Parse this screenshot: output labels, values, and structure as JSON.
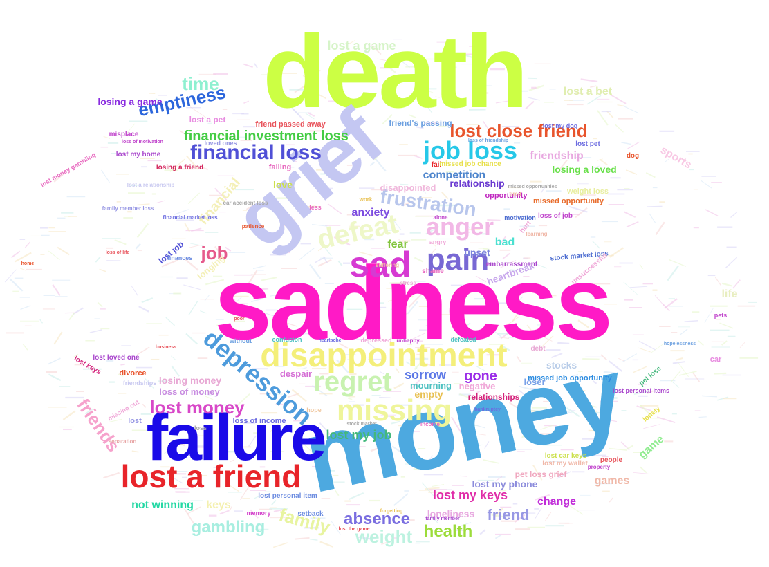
{
  "words": [
    {
      "text": "sadness",
      "color": "#ff1ac6"
    },
    {
      "text": "death",
      "color": "#ccff44"
    },
    {
      "text": "money",
      "color": "#4da9e0"
    },
    {
      "text": "grief",
      "color": "#c4c7f2"
    },
    {
      "text": "failure",
      "color": "#1a0ae8"
    },
    {
      "text": "lost a friend",
      "color": "#e8242a"
    },
    {
      "text": "disappointment",
      "color": "#f4ef7a"
    },
    {
      "text": "missing",
      "color": "#eff59a"
    },
    {
      "text": "regret",
      "color": "#c8f2b0"
    },
    {
      "text": "depression",
      "color": "#4d9bdc"
    },
    {
      "text": "sad",
      "color": "#d63ad2"
    },
    {
      "text": "pain",
      "color": "#7868d4"
    },
    {
      "text": "defeat",
      "color": "#eef7c8"
    },
    {
      "text": "anger",
      "color": "#f2b8e6"
    },
    {
      "text": "job loss",
      "color": "#26c8e8"
    },
    {
      "text": "financial loss",
      "color": "#5050d6"
    },
    {
      "text": "lost close friend",
      "color": "#e8542c"
    },
    {
      "text": "frustration",
      "color": "#b8c6ec"
    },
    {
      "text": "emptiness",
      "color": "#2c66dc"
    },
    {
      "text": "time",
      "color": "#8ef0d0"
    },
    {
      "text": "financial investment loss",
      "color": "#44cc44"
    },
    {
      "text": "lost money",
      "color": "#d848c8"
    },
    {
      "text": "friends",
      "color": "#f6a2cc"
    },
    {
      "text": "family",
      "color": "#e8f4a0"
    },
    {
      "text": "weight",
      "color": "#bdf2e0"
    },
    {
      "text": "gambling",
      "color": "#a8eee0"
    },
    {
      "text": "health",
      "color": "#9cdc3a"
    },
    {
      "text": "absence",
      "color": "#7a6ee0"
    },
    {
      "text": "friend",
      "color": "#9898e4"
    },
    {
      "text": "lost my keys",
      "color": "#e02ca8"
    },
    {
      "text": "lost a game",
      "color": "#d6f4c8"
    },
    {
      "text": "job",
      "color": "#e65a8c"
    },
    {
      "text": "gone",
      "color": "#9a2ce8"
    },
    {
      "text": "sorrow",
      "color": "#5c78e6"
    },
    {
      "text": "lost my job",
      "color": "#44b87c"
    },
    {
      "text": "lost a bet",
      "color": "#e0eeb0"
    },
    {
      "text": "losing a game",
      "color": "#8a2ce0"
    },
    {
      "text": "friendship",
      "color": "#e8a8e0"
    },
    {
      "text": "competition",
      "color": "#4c84cc"
    },
    {
      "text": "relationship",
      "color": "#6a3ad0"
    },
    {
      "text": "anxiety",
      "color": "#7c4ce0"
    },
    {
      "text": "losing a loved",
      "color": "#6ae04c"
    },
    {
      "text": "sports",
      "color": "#f8c8e4"
    },
    {
      "text": "financial",
      "color": "#f4f0b8"
    },
    {
      "text": "fear",
      "color": "#82c43c"
    },
    {
      "text": "bad",
      "color": "#4ce0d0"
    },
    {
      "text": "upset",
      "color": "#7c84dc"
    },
    {
      "text": "heartbreak",
      "color": "#c8a8ec"
    },
    {
      "text": "love",
      "color": "#cce04c"
    },
    {
      "text": "disappointed",
      "color": "#f0b8dc"
    },
    {
      "text": "life",
      "color": "#e8eec0"
    },
    {
      "text": "stocks",
      "color": "#b8cce8"
    },
    {
      "text": "not winning",
      "color": "#24d8a4"
    },
    {
      "text": "keys",
      "color": "#f4f0b0"
    },
    {
      "text": "change",
      "color": "#c02cd8"
    },
    {
      "text": "games",
      "color": "#f0b8a8"
    },
    {
      "text": "lost my phone",
      "color": "#8c8cdc"
    },
    {
      "text": "loneliness",
      "color": "#e8a8e0"
    },
    {
      "text": "losing money",
      "color": "#e8a8d4"
    },
    {
      "text": "loss of money",
      "color": "#c88ce0"
    },
    {
      "text": "negative",
      "color": "#f0a8d8"
    },
    {
      "text": "empty",
      "color": "#e8c050"
    },
    {
      "text": "mourning",
      "color": "#4cc0c0"
    },
    {
      "text": "relationships",
      "color": "#d4247c"
    },
    {
      "text": "despair",
      "color": "#d46cd4"
    },
    {
      "text": "pet loss grief",
      "color": "#f0a8c0"
    },
    {
      "text": "loser",
      "color": "#78a0e8"
    },
    {
      "text": "missed job opportunity",
      "color": "#2c8ce0"
    },
    {
      "text": "lost loved one",
      "color": "#a844cc"
    },
    {
      "text": "divorce",
      "color": "#e8542c"
    },
    {
      "text": "lost keys",
      "color": "#d4247c"
    },
    {
      "text": "loss of income",
      "color": "#6c6ce0"
    },
    {
      "text": "game",
      "color": "#90ec90"
    },
    {
      "text": "friend passed away",
      "color": "#e8545c"
    },
    {
      "text": "friend's passing",
      "color": "#6ca0e0"
    },
    {
      "text": "lost a pet",
      "color": "#e88ce0"
    },
    {
      "text": "failing",
      "color": "#e86cc0"
    },
    {
      "text": "lost my home",
      "color": "#a844cc"
    },
    {
      "text": "losing a friend",
      "color": "#d4245c"
    },
    {
      "text": "opportunity",
      "color": "#c028c0"
    },
    {
      "text": "missed opportunity",
      "color": "#e86c2c"
    },
    {
      "text": "weight loss",
      "color": "#e8eea0"
    },
    {
      "text": "stock market loss",
      "color": "#4c6cd0"
    },
    {
      "text": "embarrassment",
      "color": "#a844cc"
    },
    {
      "text": "lost job",
      "color": "#5050d6"
    },
    {
      "text": "longing",
      "color": "#f4f0b8"
    },
    {
      "text": "shame",
      "color": "#e86cc0"
    },
    {
      "text": "lost pet",
      "color": "#6c6ce0"
    },
    {
      "text": "dog",
      "color": "#e8542c"
    },
    {
      "text": "fail",
      "color": "#e8242a"
    },
    {
      "text": "missed job chance",
      "color": "#e8e04c"
    },
    {
      "text": "lost my wallet",
      "color": "#f0b8a8"
    },
    {
      "text": "lost car keys",
      "color": "#cce04c"
    },
    {
      "text": "people",
      "color": "#e8545c"
    },
    {
      "text": "lost personal item",
      "color": "#6c8ce0"
    },
    {
      "text": "setback",
      "color": "#6c8ce0"
    },
    {
      "text": "memory",
      "color": "#d444cc"
    },
    {
      "text": "lost money gambling",
      "color": "#e86cc0"
    },
    {
      "text": "pets",
      "color": "#c044cc"
    },
    {
      "text": "car",
      "color": "#e88ce0"
    },
    {
      "text": "stock market",
      "color": "#a8a8a8"
    },
    {
      "text": "lost the game",
      "color": "#e8545c"
    },
    {
      "text": "income",
      "color": "#e86cc0"
    },
    {
      "text": "hope",
      "color": "#f0c8a0"
    },
    {
      "text": "lost my dog",
      "color": "#6c6ce0"
    },
    {
      "text": "unhappy",
      "color": "#c044cc"
    },
    {
      "text": "depressed",
      "color": "#f0a8d8"
    },
    {
      "text": "defeated",
      "color": "#4cc0c0"
    },
    {
      "text": "confusion",
      "color": "#4cc0c0"
    },
    {
      "text": "without",
      "color": "#6ca0e0"
    },
    {
      "text": "angry",
      "color": "#f0a8d8"
    },
    {
      "text": "patience",
      "color": "#e8542c"
    },
    {
      "text": "alone",
      "color": "#c044cc"
    },
    {
      "text": "less",
      "color": "#e86cc0"
    },
    {
      "text": "work",
      "color": "#e8c050"
    },
    {
      "text": "suffering",
      "color": "#f0b8a8"
    },
    {
      "text": "loved ones",
      "color": "#9898e4"
    },
    {
      "text": "misplace",
      "color": "#c044cc"
    },
    {
      "text": "loss of life",
      "color": "#e8545c"
    },
    {
      "text": "finances",
      "color": "#6c8ce0"
    },
    {
      "text": "motivation",
      "color": "#4c6cd0"
    },
    {
      "text": "loss of job",
      "color": "#c044cc"
    },
    {
      "text": "lonely",
      "color": "#e8e04c"
    },
    {
      "text": "home",
      "color": "#e8542c"
    },
    {
      "text": "lost",
      "color": "#9898e4"
    },
    {
      "text": "loss",
      "color": "#a8a8a8"
    },
    {
      "text": "debt",
      "color": "#e8a8d4"
    },
    {
      "text": "pet loss",
      "color": "#44b87c"
    },
    {
      "text": "lost personal items",
      "color": "#a844cc"
    },
    {
      "text": "financial market loss",
      "color": "#6c6ce0"
    },
    {
      "text": "family member loss",
      "color": "#9898e4"
    },
    {
      "text": "car accident loss",
      "color": "#a8a8a8"
    },
    {
      "text": "lost a relationship",
      "color": "#c8c8f0"
    },
    {
      "text": "friendships",
      "color": "#c8c8f0"
    },
    {
      "text": "property",
      "color": "#c044cc"
    },
    {
      "text": "family member",
      "color": "#a844cc"
    },
    {
      "text": "forgetting",
      "color": "#e8c050"
    },
    {
      "text": "unsuccessful",
      "color": "#f0a8d8"
    },
    {
      "text": "loss of friendship",
      "color": "#6ca0e0"
    },
    {
      "text": "missed opportunities",
      "color": "#a8a8a8"
    },
    {
      "text": "loss of motivation",
      "color": "#c044cc"
    },
    {
      "text": "tired",
      "color": "#f0b8a8"
    },
    {
      "text": "hurt",
      "color": "#f0a8d8"
    },
    {
      "text": "stress",
      "color": "#e8a8d4"
    },
    {
      "text": "business",
      "color": "#e8545c"
    },
    {
      "text": "learning",
      "color": "#f0b8a8"
    },
    {
      "text": "bankruptcy",
      "color": "#6c6ce0"
    },
    {
      "text": "missing out",
      "color": "#f0a8d8"
    },
    {
      "text": "separation",
      "color": "#e8a8a8"
    },
    {
      "text": "poor",
      "color": "#e8545c"
    },
    {
      "text": "heartache",
      "color": "#6c6ce0"
    },
    {
      "text": "hopelessness",
      "color": "#6ca0e0"
    }
  ]
}
